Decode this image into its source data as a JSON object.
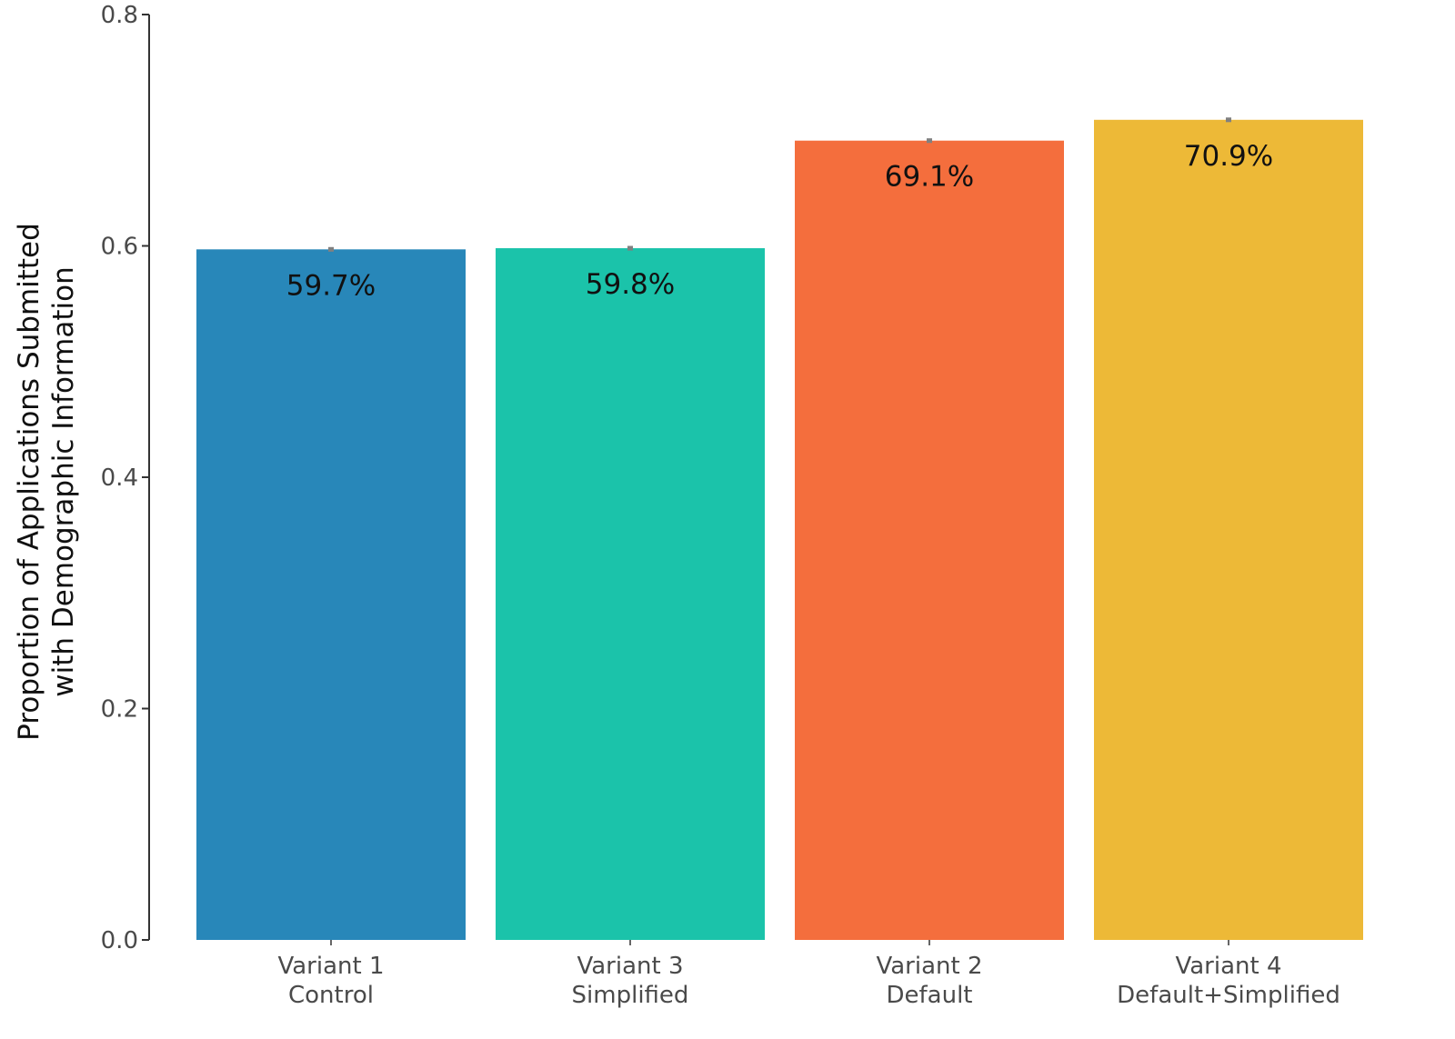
{
  "chart_data": {
    "type": "bar",
    "title": "",
    "xlabel": "",
    "ylabel_lines": [
      "Proportion of Applications Submitted",
      "with Demographic Information"
    ],
    "ylim": [
      0,
      0.8
    ],
    "yticks": [
      "0.0",
      "0.2",
      "0.4",
      "0.6",
      "0.8"
    ],
    "ytick_values": [
      0,
      0.2,
      0.4,
      0.6,
      0.8
    ],
    "grid": false,
    "categories": [
      {
        "line1": "Variant 1",
        "line2": "Control"
      },
      {
        "line1": "Variant 3",
        "line2": "Simplified"
      },
      {
        "line1": "Variant 2",
        "line2": "Default"
      },
      {
        "line1": "Variant 4",
        "line2": "Default+Simplified"
      }
    ],
    "values": [
      0.597,
      0.598,
      0.691,
      0.709
    ],
    "value_labels": [
      "59.7%",
      "59.8%",
      "69.1%",
      "70.9%"
    ],
    "error": [
      0.002,
      0.002,
      0.002,
      0.002
    ],
    "colors": [
      "#2887B9",
      "#1BC3AA",
      "#F46E3D",
      "#EDB937"
    ],
    "error_color": "#808080",
    "axis_color": "#333333"
  }
}
